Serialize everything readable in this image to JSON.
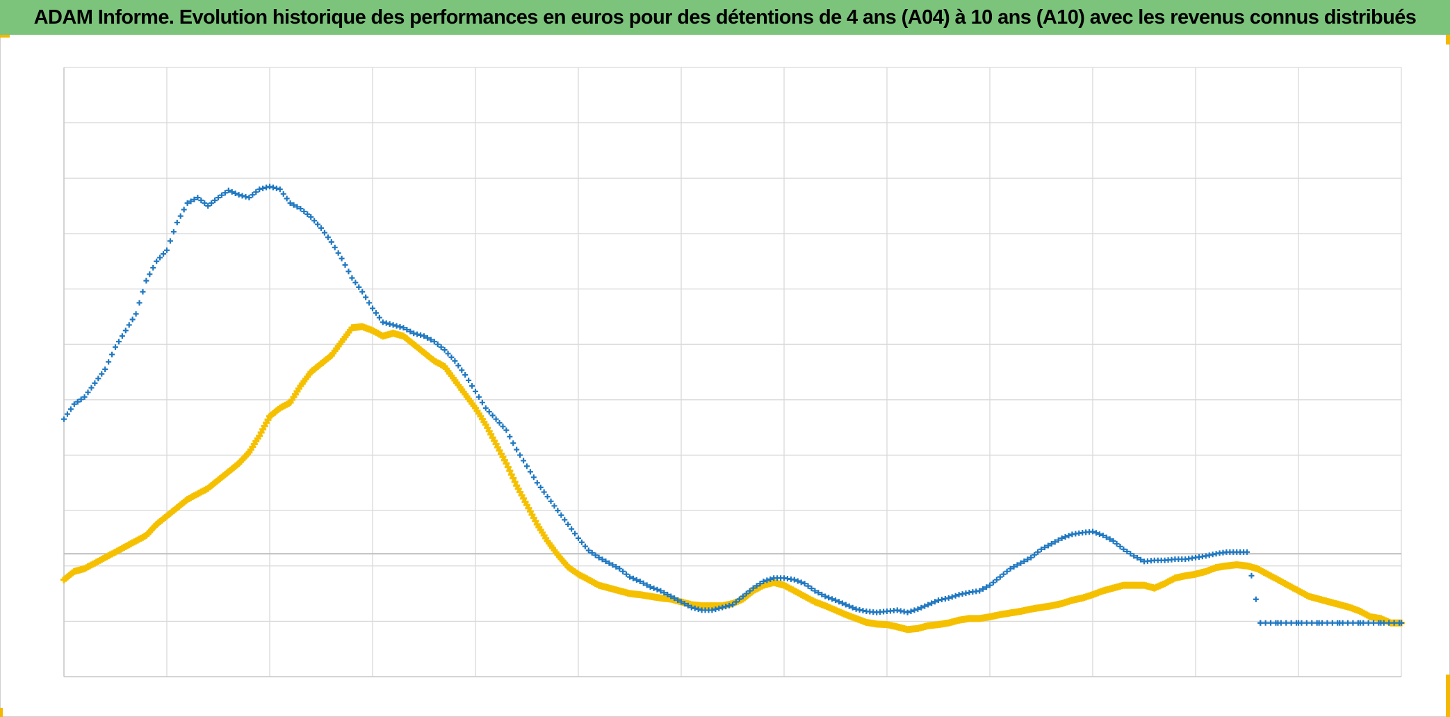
{
  "title": "ADAM Informe. Evolution historique des performances en euros pour des détentions de 4 ans (A04) à 10 ans (A10) avec les revenus connus distribués",
  "colors": {
    "title_bg": "#7cc47c",
    "series_a04": "#1f78c1",
    "series_a10": "#f5c000",
    "grid": "#d9d9d9",
    "corner_marks": "#f5b800"
  },
  "chart_data": {
    "type": "scatter",
    "title": "",
    "xlabel": "",
    "ylabel": "",
    "xlim": [
      0,
      13
    ],
    "ylim": [
      -1,
      10
    ],
    "reference_line_y": 1.22,
    "grid": true,
    "legend": "none",
    "series": [
      {
        "color": "#1f78c1",
        "marker": "plus",
        "points": [
          [
            0.0,
            3.65
          ],
          [
            0.1,
            3.92
          ],
          [
            0.2,
            4.05
          ],
          [
            0.3,
            4.3
          ],
          [
            0.4,
            4.55
          ],
          [
            0.5,
            4.95
          ],
          [
            0.6,
            5.25
          ],
          [
            0.7,
            5.55
          ],
          [
            0.8,
            6.15
          ],
          [
            0.9,
            6.5
          ],
          [
            1.0,
            6.7
          ],
          [
            1.1,
            7.2
          ],
          [
            1.2,
            7.55
          ],
          [
            1.3,
            7.65
          ],
          [
            1.4,
            7.5
          ],
          [
            1.5,
            7.65
          ],
          [
            1.6,
            7.78
          ],
          [
            1.7,
            7.7
          ],
          [
            1.8,
            7.65
          ],
          [
            1.9,
            7.8
          ],
          [
            2.0,
            7.85
          ],
          [
            2.1,
            7.8
          ],
          [
            2.2,
            7.55
          ],
          [
            2.3,
            7.45
          ],
          [
            2.4,
            7.3
          ],
          [
            2.5,
            7.1
          ],
          [
            2.6,
            6.85
          ],
          [
            2.7,
            6.55
          ],
          [
            2.8,
            6.2
          ],
          [
            2.9,
            5.95
          ],
          [
            3.0,
            5.65
          ],
          [
            3.1,
            5.4
          ],
          [
            3.2,
            5.35
          ],
          [
            3.3,
            5.3
          ],
          [
            3.4,
            5.2
          ],
          [
            3.5,
            5.15
          ],
          [
            3.6,
            5.05
          ],
          [
            3.7,
            4.9
          ],
          [
            3.8,
            4.7
          ],
          [
            3.9,
            4.45
          ],
          [
            4.0,
            4.15
          ],
          [
            4.1,
            3.85
          ],
          [
            4.2,
            3.65
          ],
          [
            4.3,
            3.45
          ],
          [
            4.4,
            3.1
          ],
          [
            4.5,
            2.8
          ],
          [
            4.6,
            2.5
          ],
          [
            4.7,
            2.25
          ],
          [
            4.8,
            2.0
          ],
          [
            4.9,
            1.75
          ],
          [
            5.0,
            1.5
          ],
          [
            5.1,
            1.28
          ],
          [
            5.2,
            1.15
          ],
          [
            5.3,
            1.05
          ],
          [
            5.4,
            0.95
          ],
          [
            5.5,
            0.8
          ],
          [
            5.6,
            0.72
          ],
          [
            5.7,
            0.62
          ],
          [
            5.8,
            0.55
          ],
          [
            5.9,
            0.45
          ],
          [
            6.0,
            0.35
          ],
          [
            6.1,
            0.25
          ],
          [
            6.2,
            0.2
          ],
          [
            6.3,
            0.2
          ],
          [
            6.4,
            0.25
          ],
          [
            6.5,
            0.3
          ],
          [
            6.6,
            0.45
          ],
          [
            6.7,
            0.6
          ],
          [
            6.8,
            0.72
          ],
          [
            6.9,
            0.78
          ],
          [
            7.0,
            0.78
          ],
          [
            7.1,
            0.75
          ],
          [
            7.2,
            0.68
          ],
          [
            7.3,
            0.55
          ],
          [
            7.4,
            0.45
          ],
          [
            7.5,
            0.38
          ],
          [
            7.6,
            0.3
          ],
          [
            7.7,
            0.22
          ],
          [
            7.8,
            0.18
          ],
          [
            7.9,
            0.16
          ],
          [
            8.0,
            0.18
          ],
          [
            8.1,
            0.2
          ],
          [
            8.2,
            0.16
          ],
          [
            8.3,
            0.22
          ],
          [
            8.4,
            0.3
          ],
          [
            8.5,
            0.38
          ],
          [
            8.6,
            0.42
          ],
          [
            8.7,
            0.48
          ],
          [
            8.8,
            0.52
          ],
          [
            8.9,
            0.55
          ],
          [
            9.0,
            0.65
          ],
          [
            9.1,
            0.8
          ],
          [
            9.2,
            0.95
          ],
          [
            9.3,
            1.05
          ],
          [
            9.4,
            1.15
          ],
          [
            9.5,
            1.3
          ],
          [
            9.6,
            1.4
          ],
          [
            9.7,
            1.5
          ],
          [
            9.8,
            1.57
          ],
          [
            9.9,
            1.6
          ],
          [
            10.0,
            1.62
          ],
          [
            10.1,
            1.55
          ],
          [
            10.2,
            1.45
          ],
          [
            10.3,
            1.3
          ],
          [
            10.4,
            1.18
          ],
          [
            10.5,
            1.08
          ],
          [
            10.6,
            1.1
          ],
          [
            10.7,
            1.1
          ],
          [
            10.8,
            1.12
          ],
          [
            10.9,
            1.12
          ],
          [
            11.0,
            1.15
          ],
          [
            11.1,
            1.18
          ],
          [
            11.2,
            1.22
          ],
          [
            11.3,
            1.25
          ],
          [
            11.4,
            1.25
          ],
          [
            11.5,
            1.25
          ],
          [
            11.63,
            -0.03
          ],
          [
            11.8,
            -0.03
          ],
          [
            12.0,
            -0.03
          ],
          [
            12.2,
            -0.03
          ],
          [
            12.4,
            -0.03
          ],
          [
            12.6,
            -0.03
          ],
          [
            12.8,
            -0.03
          ],
          [
            13.0,
            -0.03
          ]
        ]
      },
      {
        "color": "#f5c000",
        "marker": "plus",
        "points": [
          [
            0.0,
            0.75
          ],
          [
            0.1,
            0.9
          ],
          [
            0.2,
            0.95
          ],
          [
            0.3,
            1.05
          ],
          [
            0.4,
            1.15
          ],
          [
            0.5,
            1.25
          ],
          [
            0.6,
            1.35
          ],
          [
            0.7,
            1.45
          ],
          [
            0.8,
            1.55
          ],
          [
            0.9,
            1.75
          ],
          [
            1.0,
            1.9
          ],
          [
            1.1,
            2.05
          ],
          [
            1.2,
            2.2
          ],
          [
            1.3,
            2.3
          ],
          [
            1.4,
            2.4
          ],
          [
            1.5,
            2.55
          ],
          [
            1.6,
            2.7
          ],
          [
            1.7,
            2.85
          ],
          [
            1.8,
            3.05
          ],
          [
            1.9,
            3.35
          ],
          [
            2.0,
            3.7
          ],
          [
            2.1,
            3.85
          ],
          [
            2.2,
            3.95
          ],
          [
            2.3,
            4.25
          ],
          [
            2.4,
            4.5
          ],
          [
            2.5,
            4.65
          ],
          [
            2.6,
            4.8
          ],
          [
            2.7,
            5.05
          ],
          [
            2.8,
            5.3
          ],
          [
            2.9,
            5.32
          ],
          [
            3.0,
            5.25
          ],
          [
            3.1,
            5.15
          ],
          [
            3.2,
            5.2
          ],
          [
            3.3,
            5.15
          ],
          [
            3.4,
            5.0
          ],
          [
            3.5,
            4.85
          ],
          [
            3.6,
            4.7
          ],
          [
            3.7,
            4.6
          ],
          [
            3.8,
            4.35
          ],
          [
            3.9,
            4.1
          ],
          [
            4.0,
            3.85
          ],
          [
            4.1,
            3.55
          ],
          [
            4.2,
            3.2
          ],
          [
            4.3,
            2.85
          ],
          [
            4.4,
            2.45
          ],
          [
            4.5,
            2.1
          ],
          [
            4.6,
            1.75
          ],
          [
            4.7,
            1.45
          ],
          [
            4.8,
            1.2
          ],
          [
            4.9,
            0.98
          ],
          [
            5.0,
            0.85
          ],
          [
            5.1,
            0.75
          ],
          [
            5.2,
            0.65
          ],
          [
            5.3,
            0.6
          ],
          [
            5.4,
            0.55
          ],
          [
            5.5,
            0.5
          ],
          [
            5.6,
            0.48
          ],
          [
            5.7,
            0.45
          ],
          [
            5.8,
            0.42
          ],
          [
            5.9,
            0.4
          ],
          [
            6.0,
            0.35
          ],
          [
            6.1,
            0.3
          ],
          [
            6.2,
            0.28
          ],
          [
            6.3,
            0.28
          ],
          [
            6.4,
            0.28
          ],
          [
            6.5,
            0.32
          ],
          [
            6.6,
            0.4
          ],
          [
            6.7,
            0.55
          ],
          [
            6.8,
            0.65
          ],
          [
            6.9,
            0.7
          ],
          [
            7.0,
            0.65
          ],
          [
            7.1,
            0.55
          ],
          [
            7.2,
            0.45
          ],
          [
            7.3,
            0.35
          ],
          [
            7.4,
            0.28
          ],
          [
            7.5,
            0.2
          ],
          [
            7.6,
            0.12
          ],
          [
            7.7,
            0.05
          ],
          [
            7.8,
            -0.02
          ],
          [
            7.9,
            -0.05
          ],
          [
            8.0,
            -0.06
          ],
          [
            8.1,
            -0.1
          ],
          [
            8.2,
            -0.15
          ],
          [
            8.3,
            -0.13
          ],
          [
            8.4,
            -0.08
          ],
          [
            8.5,
            -0.06
          ],
          [
            8.6,
            -0.03
          ],
          [
            8.7,
            0.02
          ],
          [
            8.8,
            0.05
          ],
          [
            8.9,
            0.05
          ],
          [
            9.0,
            0.08
          ],
          [
            9.1,
            0.12
          ],
          [
            9.2,
            0.15
          ],
          [
            9.3,
            0.18
          ],
          [
            9.4,
            0.22
          ],
          [
            9.5,
            0.25
          ],
          [
            9.6,
            0.28
          ],
          [
            9.7,
            0.32
          ],
          [
            9.8,
            0.38
          ],
          [
            9.9,
            0.42
          ],
          [
            10.0,
            0.48
          ],
          [
            10.1,
            0.55
          ],
          [
            10.2,
            0.6
          ],
          [
            10.3,
            0.65
          ],
          [
            10.4,
            0.65
          ],
          [
            10.5,
            0.65
          ],
          [
            10.6,
            0.6
          ],
          [
            10.7,
            0.68
          ],
          [
            10.8,
            0.78
          ],
          [
            10.9,
            0.82
          ],
          [
            11.0,
            0.85
          ],
          [
            11.1,
            0.9
          ],
          [
            11.2,
            0.97
          ],
          [
            11.3,
            1.0
          ],
          [
            11.4,
            1.02
          ],
          [
            11.5,
            1.0
          ],
          [
            11.6,
            0.95
          ],
          [
            11.7,
            0.85
          ],
          [
            11.8,
            0.75
          ],
          [
            11.9,
            0.65
          ],
          [
            12.0,
            0.55
          ],
          [
            12.1,
            0.45
          ],
          [
            12.2,
            0.4
          ],
          [
            12.3,
            0.35
          ],
          [
            12.4,
            0.3
          ],
          [
            12.5,
            0.25
          ],
          [
            12.6,
            0.18
          ],
          [
            12.7,
            0.08
          ],
          [
            12.8,
            0.05
          ],
          [
            12.9,
            -0.03
          ],
          [
            13.0,
            -0.03
          ]
        ]
      }
    ]
  }
}
